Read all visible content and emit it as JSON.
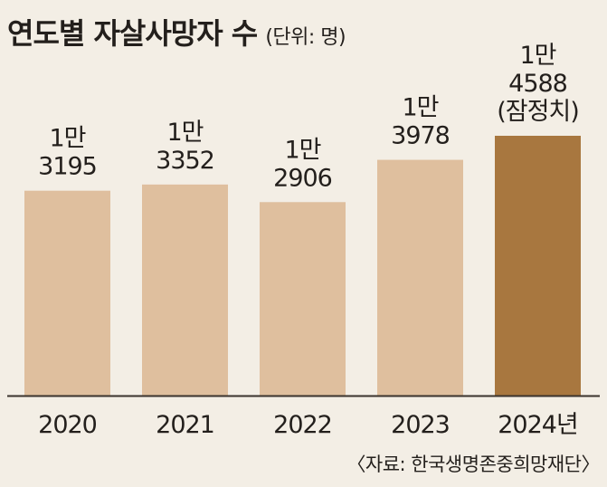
{
  "title": "연도별 자살사망자 수",
  "unit": "(단위: 명)",
  "source": "〈자료: 한국생명존중희망재단〉",
  "colors": {
    "bar": "#dfbf9e",
    "highlight_bar": "#a8773f",
    "axis": "#3a332d",
    "text": "#231f1c",
    "background": "#f3eee5"
  },
  "chart_data": {
    "type": "bar",
    "title": "연도별 자살사망자 수",
    "unit": "(단위: 명)",
    "categories": [
      "2020",
      "2021",
      "2022",
      "2023",
      "2024년"
    ],
    "values": [
      13195,
      13352,
      12906,
      13978,
      14588
    ],
    "value_labels": [
      [
        "1만",
        "3195"
      ],
      [
        "1만",
        "3352"
      ],
      [
        "1만",
        "2906"
      ],
      [
        "1만",
        "3978"
      ],
      [
        "1만",
        "4588",
        "(잠정치)"
      ]
    ],
    "highlight_index": 4,
    "xlabel": "",
    "ylabel": "",
    "grid": false,
    "legend": "none"
  }
}
